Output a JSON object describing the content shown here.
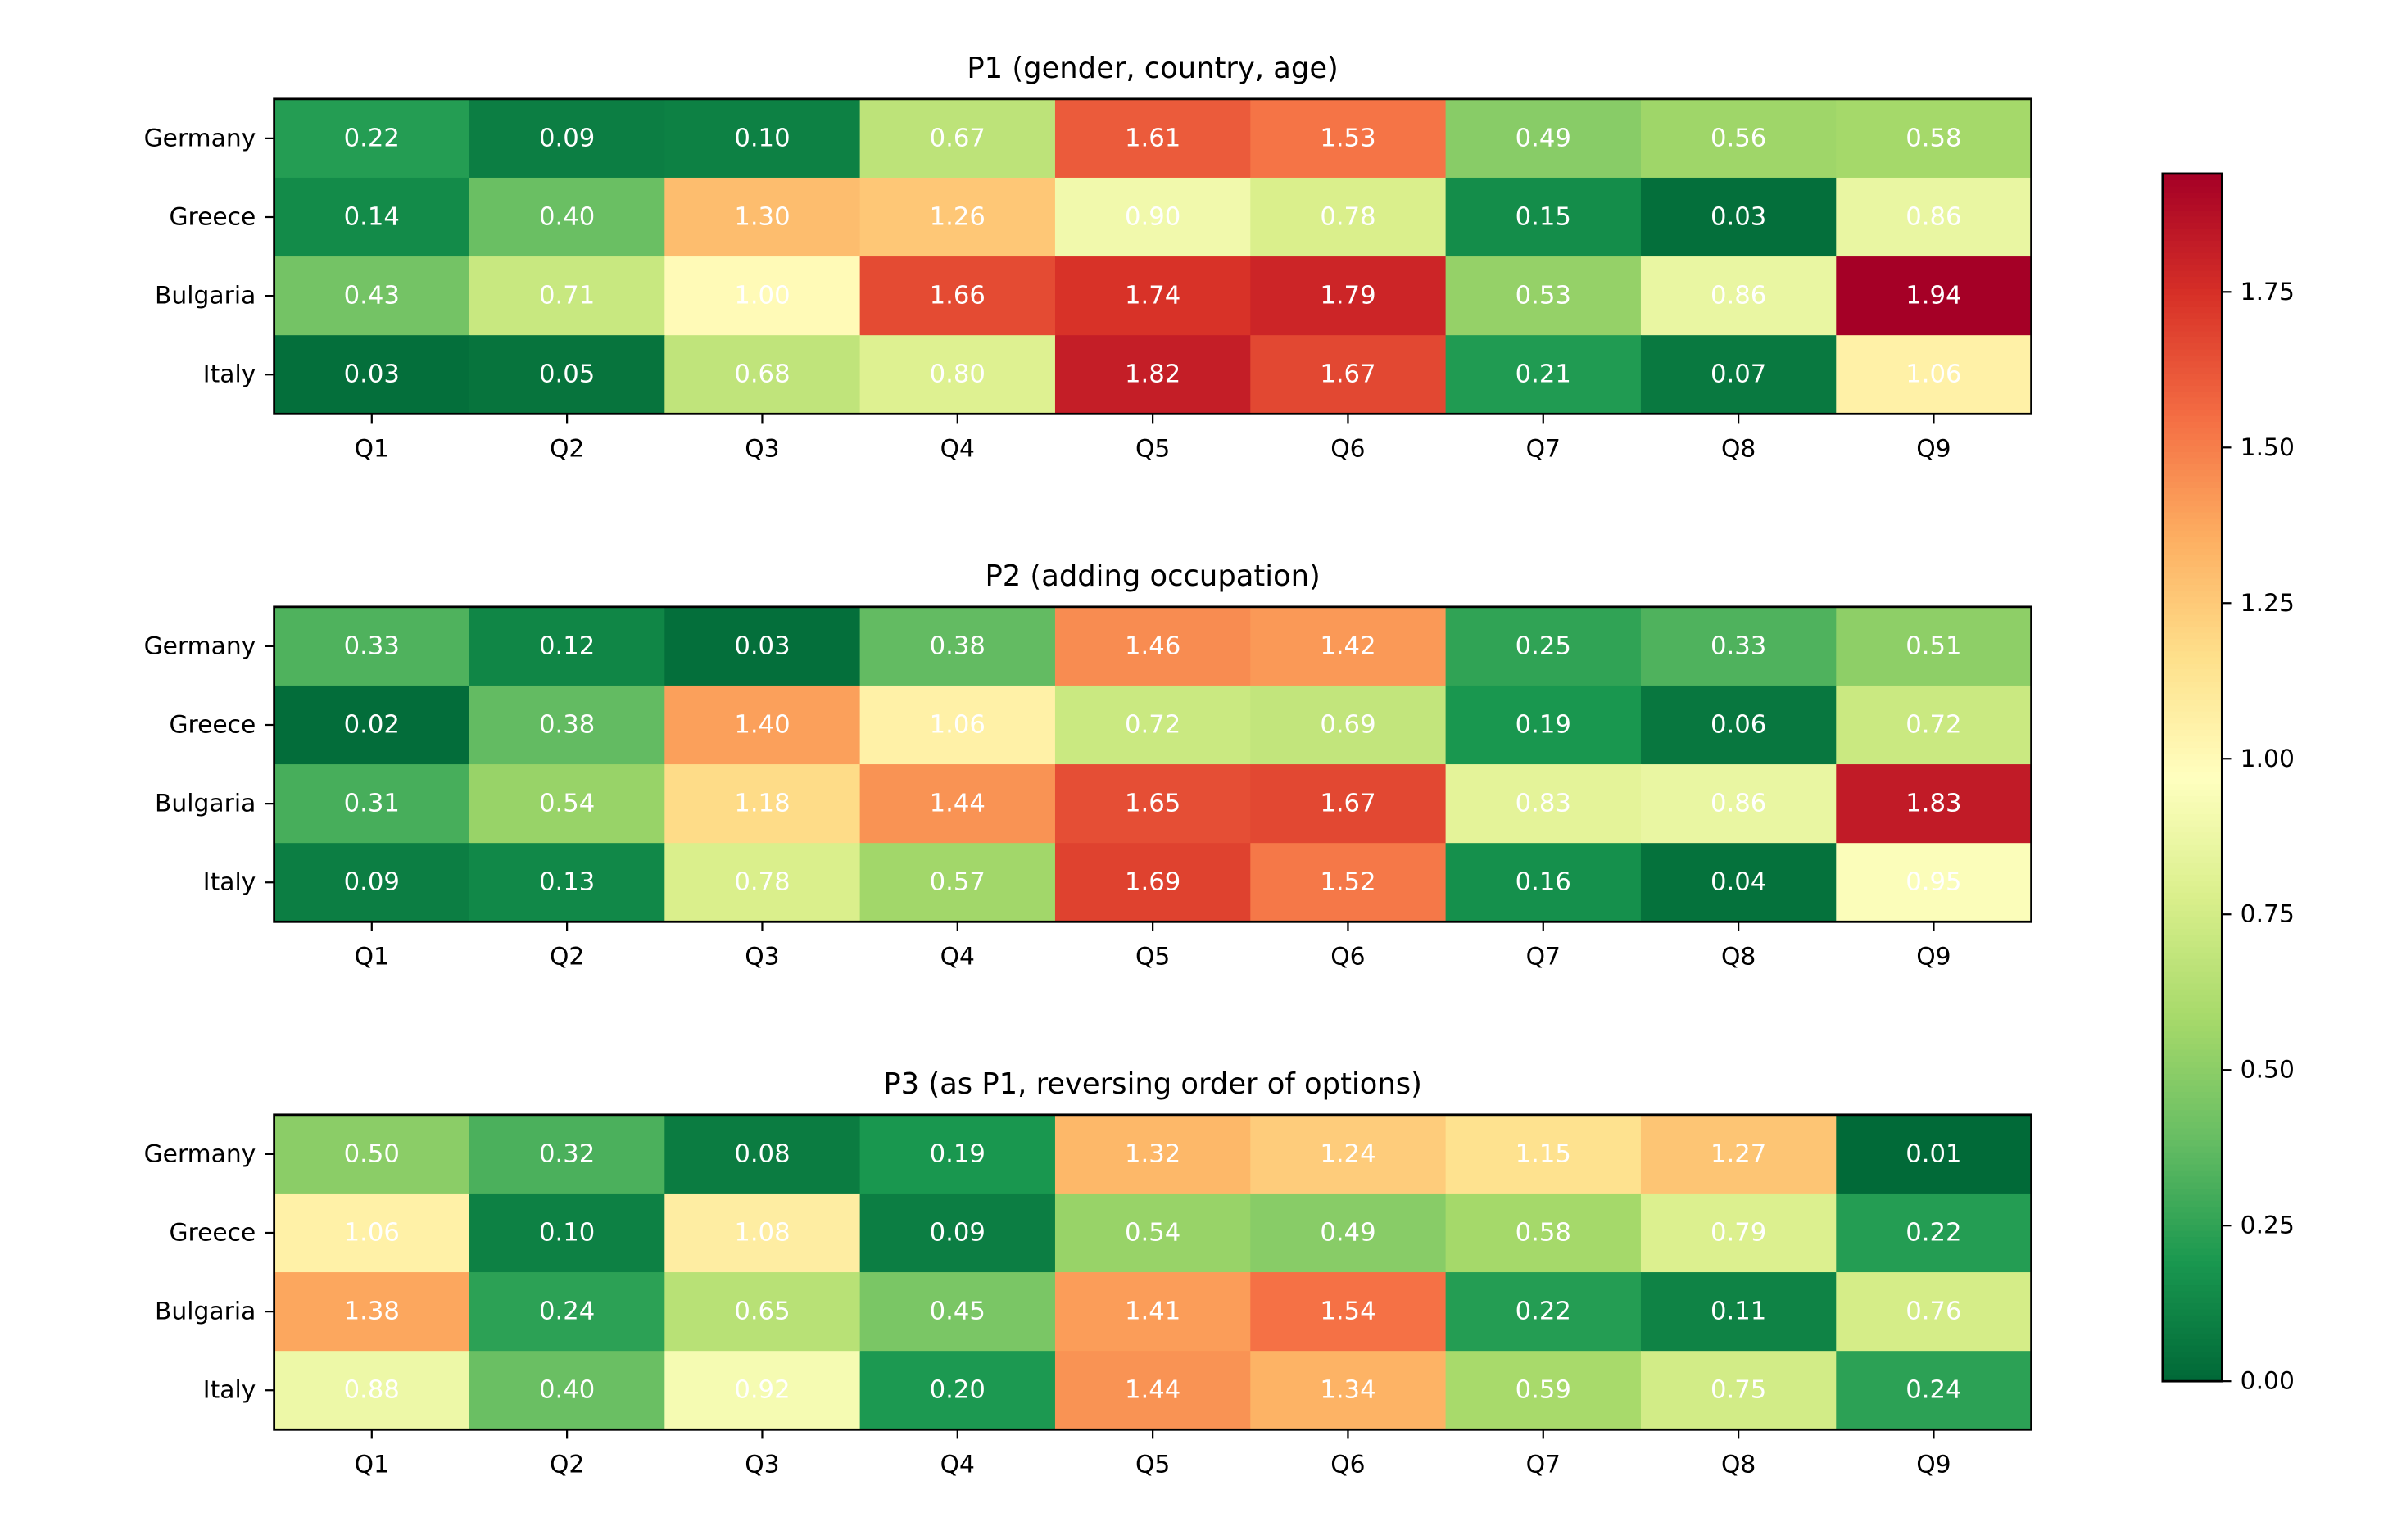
{
  "chart_data": [
    {
      "type": "heatmap",
      "title": "P1 (gender, country, age)",
      "rows": [
        "Germany",
        "Greece",
        "Bulgaria",
        "Italy"
      ],
      "columns": [
        "Q1",
        "Q2",
        "Q3",
        "Q4",
        "Q5",
        "Q6",
        "Q7",
        "Q8",
        "Q9"
      ],
      "values": [
        [
          0.22,
          0.09,
          0.1,
          0.67,
          1.61,
          1.53,
          0.49,
          0.56,
          0.58
        ],
        [
          0.14,
          0.4,
          1.3,
          1.26,
          0.9,
          0.78,
          0.15,
          0.03,
          0.86
        ],
        [
          0.43,
          0.71,
          1.0,
          1.66,
          1.74,
          1.79,
          0.53,
          0.86,
          1.94
        ],
        [
          0.03,
          0.05,
          0.68,
          0.8,
          1.82,
          1.67,
          0.21,
          0.07,
          1.06
        ]
      ],
      "value_format": "2 decimals"
    },
    {
      "type": "heatmap",
      "title": "P2 (adding occupation)",
      "rows": [
        "Germany",
        "Greece",
        "Bulgaria",
        "Italy"
      ],
      "columns": [
        "Q1",
        "Q2",
        "Q3",
        "Q4",
        "Q5",
        "Q6",
        "Q7",
        "Q8",
        "Q9"
      ],
      "values": [
        [
          0.33,
          0.12,
          0.03,
          0.38,
          1.46,
          1.42,
          0.25,
          0.33,
          0.51
        ],
        [
          0.02,
          0.38,
          1.4,
          1.06,
          0.72,
          0.69,
          0.19,
          0.06,
          0.72
        ],
        [
          0.31,
          0.54,
          1.18,
          1.44,
          1.65,
          1.67,
          0.83,
          0.86,
          1.83
        ],
        [
          0.09,
          0.13,
          0.78,
          0.57,
          1.69,
          1.52,
          0.16,
          0.04,
          0.95
        ]
      ],
      "value_format": "2 decimals"
    },
    {
      "type": "heatmap",
      "title": "P3 (as P1, reversing order of options)",
      "rows": [
        "Germany",
        "Greece",
        "Bulgaria",
        "Italy"
      ],
      "columns": [
        "Q1",
        "Q2",
        "Q3",
        "Q4",
        "Q5",
        "Q6",
        "Q7",
        "Q8",
        "Q9"
      ],
      "values": [
        [
          0.5,
          0.32,
          0.08,
          0.19,
          1.32,
          1.24,
          1.15,
          1.27,
          0.01
        ],
        [
          1.06,
          0.1,
          1.08,
          0.09,
          0.54,
          0.49,
          0.58,
          0.79,
          0.22
        ],
        [
          1.38,
          0.24,
          0.65,
          0.45,
          1.41,
          1.54,
          0.22,
          0.11,
          0.76
        ],
        [
          0.88,
          0.4,
          0.92,
          0.2,
          1.44,
          1.34,
          0.59,
          0.75,
          0.24
        ]
      ],
      "value_format": "2 decimals"
    }
  ],
  "colorbar": {
    "colormap": "RdYlGn_r",
    "range": [
      0.0,
      1.94
    ],
    "ticks": [
      0.0,
      0.25,
      0.5,
      0.75,
      1.0,
      1.25,
      1.5,
      1.75
    ],
    "tick_labels": [
      "0.00",
      "0.25",
      "0.50",
      "0.75",
      "1.00",
      "1.25",
      "1.50",
      "1.75"
    ]
  },
  "colors": {
    "cell_text": "#ffffff",
    "axis_text": "#000000",
    "frame": "#000000"
  }
}
